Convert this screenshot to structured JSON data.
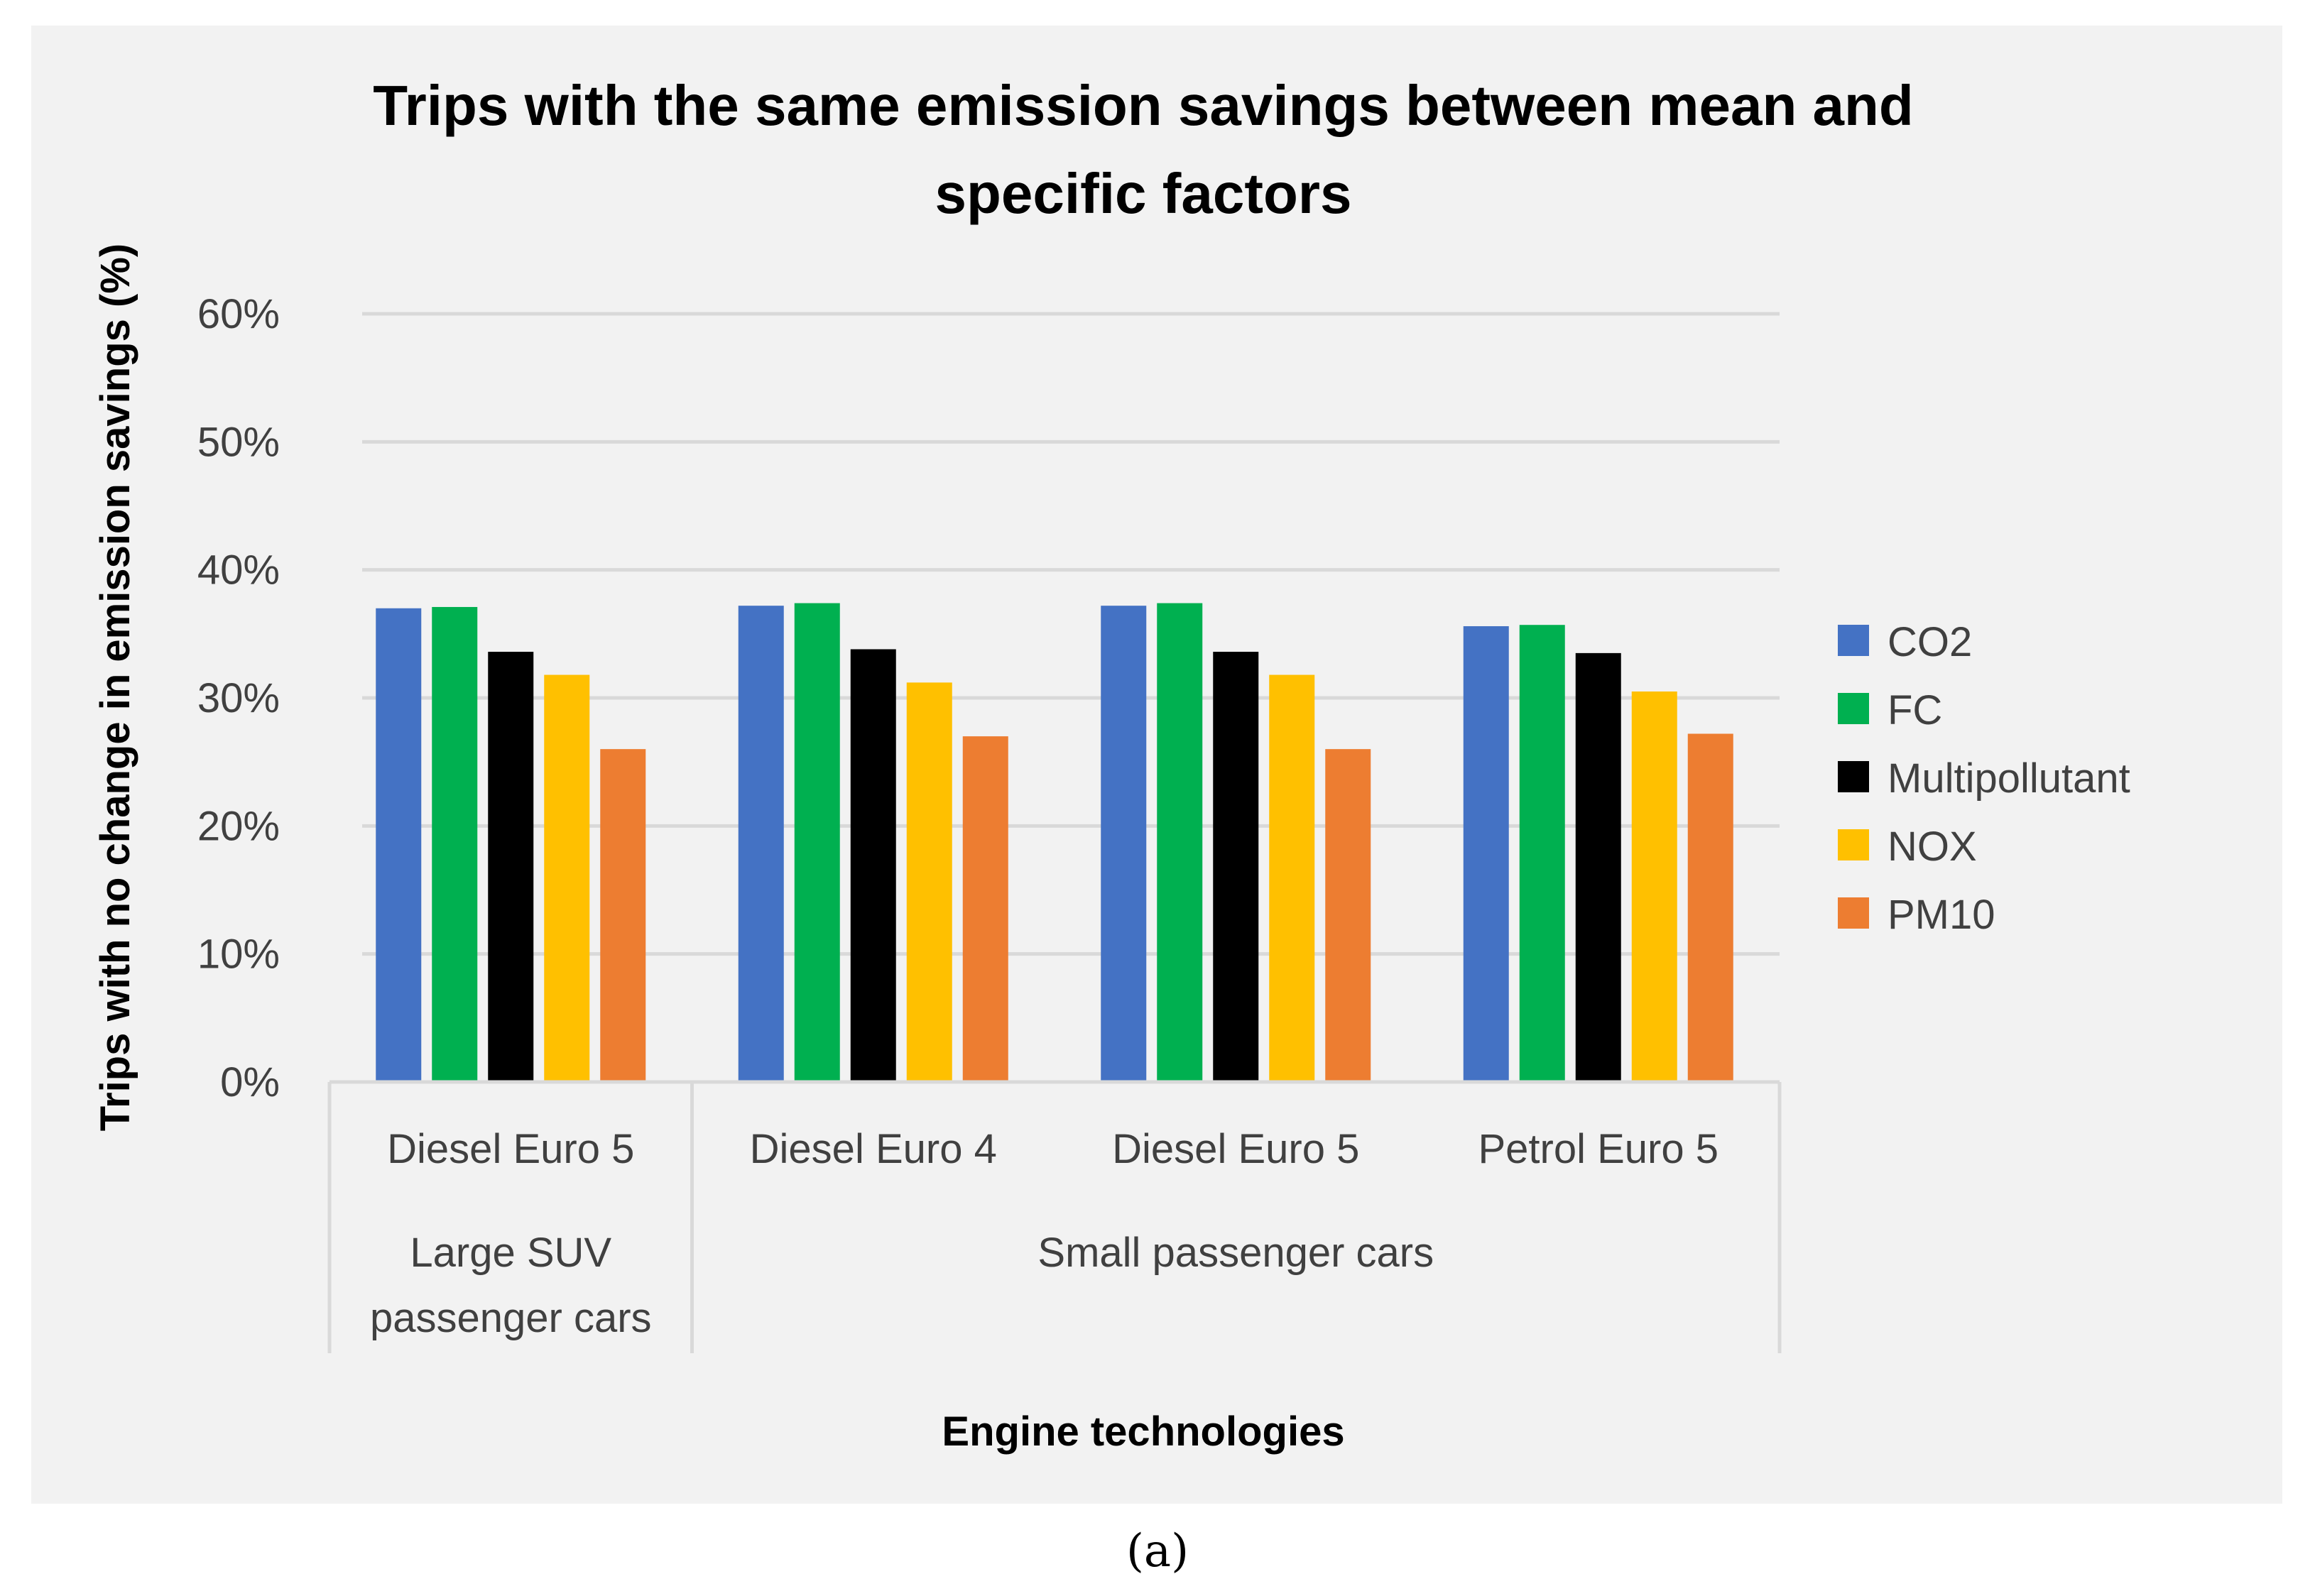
{
  "chart_data": {
    "type": "bar",
    "title_lines": [
      "Trips with the same emission savings between mean and",
      "specific factors"
    ],
    "xlabel": "Engine technologies",
    "ylabel": "Trips with no change in emission savings (%)",
    "ylim": [
      0,
      60
    ],
    "yticks": [
      0,
      10,
      20,
      30,
      40,
      50,
      60
    ],
    "ytick_labels": [
      "0%",
      "10%",
      "20%",
      "30%",
      "40%",
      "50%",
      "60%"
    ],
    "grid": true,
    "legend_position": "right",
    "categories": [
      "Diesel Euro 5",
      "Diesel Euro 4",
      "Diesel Euro 5",
      "Petrol Euro 5"
    ],
    "groups": [
      {
        "label_lines": [
          "Large SUV",
          "passenger cars"
        ],
        "count": 1
      },
      {
        "label_lines": [
          "Small passenger cars"
        ],
        "count": 3
      }
    ],
    "series": [
      {
        "name": "CO2",
        "color": "#4472c4",
        "values": [
          37.0,
          37.2,
          37.2,
          35.6
        ]
      },
      {
        "name": "FC",
        "color": "#00b050",
        "values": [
          37.1,
          37.4,
          37.4,
          35.7
        ]
      },
      {
        "name": "Multipollutant",
        "color": "#000000",
        "values": [
          33.6,
          33.8,
          33.6,
          33.5
        ]
      },
      {
        "name": "NOX",
        "color": "#ffc000",
        "values": [
          31.8,
          31.2,
          31.8,
          30.5
        ]
      },
      {
        "name": "PM10",
        "color": "#ed7d31",
        "values": [
          26.0,
          27.0,
          26.0,
          27.2
        ]
      }
    ]
  },
  "panel_label": "(a)"
}
